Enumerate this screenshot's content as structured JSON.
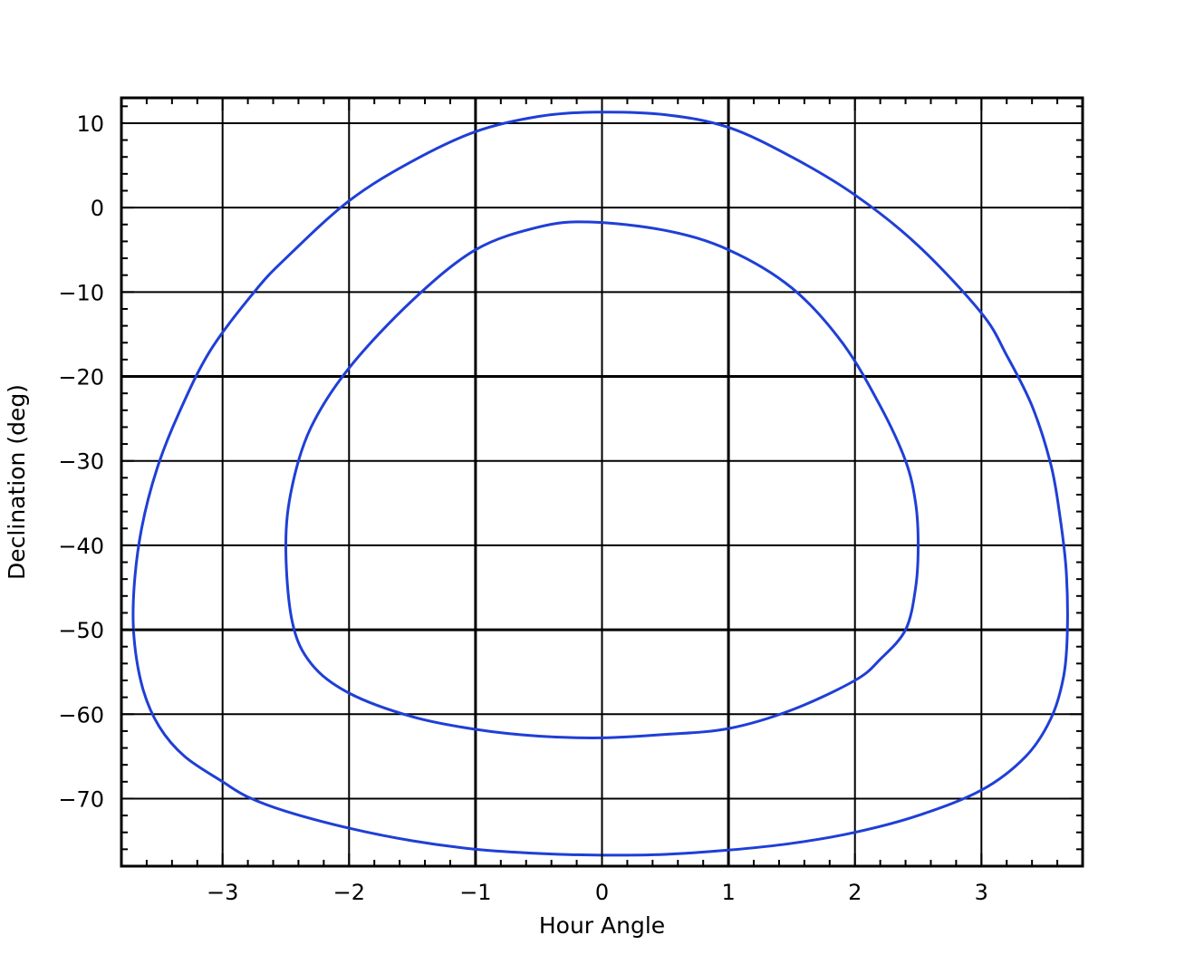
{
  "chart_data": {
    "type": "line",
    "title": "",
    "xlabel": "Hour Angle",
    "ylabel": "Declination (deg)",
    "xlim": [
      -3.8,
      3.8
    ],
    "ylim": [
      -78,
      13
    ],
    "grid": true,
    "x_ticks": [
      -3,
      -2,
      -1,
      0,
      1,
      2,
      3
    ],
    "x_tick_labels": [
      "−3",
      "−2",
      "−1",
      "0",
      "1",
      "2",
      "3"
    ],
    "y_ticks": [
      10,
      0,
      -10,
      -20,
      -30,
      -40,
      -50,
      -60,
      -70
    ],
    "y_tick_labels": [
      "10",
      "0",
      "−10",
      "−20",
      "−30",
      "−40",
      "−50",
      "−60",
      "−70"
    ],
    "series": [
      {
        "color": "#1f3fd6",
        "closed": true,
        "x": [
          -0.05,
          0.5,
          1.0,
          1.5,
          2.0,
          2.5,
          3.0,
          3.2,
          3.4,
          3.55,
          3.62,
          3.67,
          3.68,
          3.65,
          3.55,
          3.35,
          3.0,
          2.5,
          2.0,
          1.5,
          1.0,
          0.5,
          0.0,
          -0.5,
          -1.0,
          -1.5,
          -2.0,
          -2.5,
          -2.8,
          -3.0,
          -3.3,
          -3.5,
          -3.63,
          -3.7,
          -3.7,
          -3.64,
          -3.52,
          -3.35,
          -3.1,
          -2.75,
          -2.5,
          -2.0,
          -1.5,
          -1.0,
          -0.5,
          -0.05
        ],
        "y": [
          11.3,
          11.0,
          9.5,
          6.0,
          1.5,
          -4.5,
          -12.5,
          -17.5,
          -23.5,
          -30.5,
          -36.5,
          -43.0,
          -50.0,
          -55.5,
          -60.5,
          -65.0,
          -69.0,
          -72.0,
          -74.0,
          -75.3,
          -76.1,
          -76.6,
          -76.7,
          -76.5,
          -76.0,
          -75.0,
          -73.5,
          -71.5,
          -69.8,
          -68.0,
          -65.0,
          -61.5,
          -57.0,
          -51.0,
          -45.0,
          -38.0,
          -31.0,
          -24.5,
          -17.0,
          -10.0,
          -6.0,
          0.8,
          5.5,
          9.0,
          10.8,
          11.3
        ]
      },
      {
        "color": "#1f3fd6",
        "closed": true,
        "x": [
          -0.1,
          0.5,
          1.0,
          1.5,
          1.9,
          2.2,
          2.4,
          2.48,
          2.5,
          2.48,
          2.4,
          2.2,
          2.0,
          1.5,
          1.0,
          0.5,
          0.0,
          -0.5,
          -1.0,
          -1.5,
          -2.0,
          -2.3,
          -2.45,
          -2.5,
          -2.45,
          -2.3,
          -2.0,
          -1.5,
          -1.0,
          -0.5,
          -0.1
        ],
        "y": [
          -1.7,
          -2.7,
          -5.0,
          -9.5,
          -16.0,
          -23.5,
          -30.0,
          -35.0,
          -40.0,
          -45.0,
          -50.0,
          -53.5,
          -56.0,
          -59.5,
          -61.7,
          -62.4,
          -62.8,
          -62.6,
          -61.8,
          -60.3,
          -57.5,
          -54.0,
          -49.0,
          -40.0,
          -33.0,
          -26.0,
          -19.0,
          -11.0,
          -5.0,
          -2.3,
          -1.7
        ]
      }
    ]
  }
}
